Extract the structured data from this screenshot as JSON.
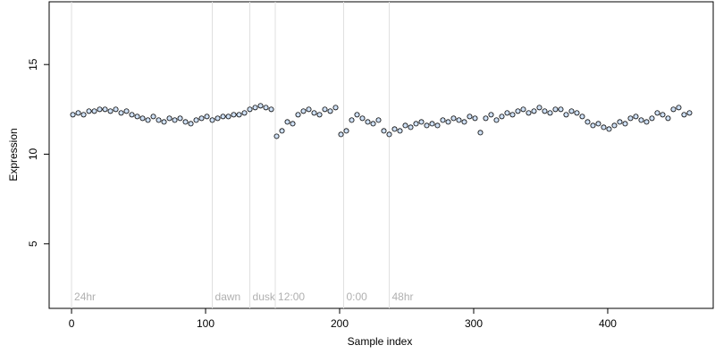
{
  "chart_data": {
    "type": "scatter",
    "x_label": "Sample index",
    "y_label": "Expression",
    "xlim": [
      -16.7,
      478.7
    ],
    "ylim": [
      1.4,
      18.5
    ],
    "xticks": [
      0,
      100,
      200,
      300,
      400
    ],
    "yticks": [
      5,
      10,
      15
    ],
    "annotations": [
      {
        "x": 0,
        "label": "24hr"
      },
      {
        "x": 105,
        "label": "dawn"
      },
      {
        "x": 133,
        "label": "dusk"
      },
      {
        "x": 152,
        "label": "12:00"
      },
      {
        "x": 203,
        "label": "0:00"
      },
      {
        "x": 237,
        "label": "48hr"
      }
    ],
    "annotation_color": "#b0b0b0",
    "series": [
      {
        "color": "#cfe0f5",
        "x": [
          1,
          5,
          9,
          13,
          17,
          21,
          25,
          29,
          33,
          37,
          41,
          45,
          49,
          53,
          57,
          61,
          65,
          69,
          73,
          77,
          81,
          85,
          89,
          93,
          97,
          101,
          105,
          109,
          113,
          117,
          121,
          125,
          129,
          133,
          137,
          141,
          145,
          149,
          153,
          157,
          161,
          165,
          169,
          173,
          177,
          181,
          185,
          189,
          193,
          197,
          201,
          205,
          209,
          213,
          217,
          221,
          225,
          229,
          233,
          237,
          241,
          245,
          249,
          253,
          257,
          261,
          265,
          269,
          273,
          277,
          281,
          285,
          289,
          293,
          297,
          301,
          305,
          309,
          313,
          317,
          321,
          325,
          329,
          333,
          337,
          341,
          345,
          349,
          353,
          357,
          361,
          365,
          369,
          373,
          377,
          381,
          385,
          389,
          393,
          397,
          401,
          405,
          409,
          413,
          417,
          421,
          425,
          429,
          433,
          437,
          441,
          445,
          449,
          453,
          457,
          461
        ],
        "values": [
          12.2,
          12.3,
          12.2,
          12.4,
          12.4,
          12.5,
          12.5,
          12.4,
          12.5,
          12.3,
          12.4,
          12.2,
          12.1,
          12.0,
          11.9,
          12.1,
          11.9,
          11.8,
          12.0,
          11.9,
          12.0,
          11.8,
          11.7,
          11.9,
          12.0,
          12.1,
          11.9,
          12.0,
          12.1,
          12.1,
          12.2,
          12.2,
          12.3,
          12.5,
          12.6,
          12.7,
          12.6,
          12.5,
          11.0,
          11.3,
          11.8,
          11.7,
          12.2,
          12.4,
          12.5,
          12.3,
          12.2,
          12.5,
          12.4,
          12.6,
          11.1,
          11.3,
          11.9,
          12.2,
          12.0,
          11.8,
          11.7,
          11.9,
          11.3,
          11.1,
          11.4,
          11.3,
          11.6,
          11.5,
          11.7,
          11.8,
          11.6,
          11.7,
          11.6,
          11.9,
          11.8,
          12.0,
          11.9,
          11.8,
          12.1,
          12.0,
          11.2,
          12.0,
          12.2,
          11.9,
          12.1,
          12.3,
          12.2,
          12.4,
          12.5,
          12.3,
          12.4,
          12.6,
          12.4,
          12.3,
          12.5,
          12.5,
          12.2,
          12.4,
          12.3,
          12.1,
          11.8,
          11.6,
          11.7,
          11.5,
          11.4,
          11.6,
          11.8,
          11.7,
          12.0,
          12.1,
          11.9,
          11.8,
          12.0,
          12.3,
          12.2,
          12.0,
          12.5,
          12.6,
          12.2,
          12.3
        ]
      }
    ]
  }
}
